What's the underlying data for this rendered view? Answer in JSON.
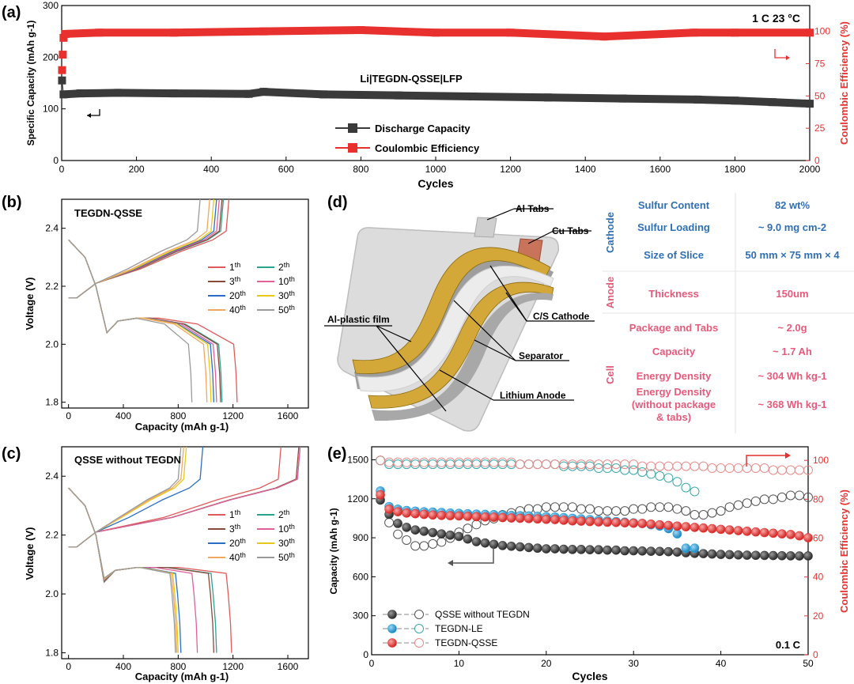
{
  "colors": {
    "red": "#e8312f",
    "black": "#3a3a3a",
    "blue": "#2aa3dd",
    "cathode_blue": "#2f6fb4",
    "anode_pink": "#e65a7a",
    "cell_pink": "#e65a7a",
    "gold": "#d4a838",
    "copper": "#c8735a"
  },
  "chart_data": [
    {
      "id": "a",
      "panel_label": "(a)",
      "type": "line",
      "title": "Li|TEGDN-QSSE|LFP",
      "conditions": "1 C   23 °C",
      "xlabel": "Cycles",
      "ylabel": "Specific Capacity (mAh g-1)",
      "ylabel_sup": "-1",
      "y2label": "Coulombic Efficiency (%)",
      "xlim": [
        0,
        2000
      ],
      "ylim": [
        0,
        300
      ],
      "y2lim": [
        0,
        120
      ],
      "xticks": [
        0,
        200,
        400,
        600,
        800,
        1000,
        1200,
        1400,
        1600,
        1800,
        2000
      ],
      "yticks": [
        0,
        100,
        200,
        300
      ],
      "y2ticks": [
        0,
        25,
        50,
        75,
        100
      ],
      "series": [
        {
          "name": "Discharge Capacity",
          "axis": "left",
          "color": "#3a3a3a",
          "x": [
            1,
            5,
            50,
            150,
            300,
            500,
            540,
            700,
            900,
            1100,
            1300,
            1500,
            1700,
            1800,
            1900,
            2000
          ],
          "y": [
            155,
            128,
            130,
            131,
            130,
            129,
            133,
            128,
            126,
            124,
            122,
            120,
            118,
            116,
            113,
            110
          ]
        },
        {
          "name": "Coulombic Efficiency",
          "axis": "right",
          "color": "#e8312f",
          "x": [
            1,
            3,
            5,
            10,
            100,
            300,
            540,
            800,
            1000,
            1200,
            1450,
            1690,
            1800,
            2000
          ],
          "y": [
            70,
            82,
            95,
            98,
            99,
            99,
            100,
            101,
            99,
            99,
            96,
            99,
            99,
            99
          ]
        }
      ]
    },
    {
      "id": "b",
      "panel_label": "(b)",
      "type": "line",
      "title": "TEGDN-QSSE",
      "xlabel": "Capacity (mAh g-1)",
      "xlabel_sup": "-1",
      "ylabel": "Voltage (V)",
      "xlim": [
        -50,
        1750
      ],
      "ylim": [
        1.78,
        2.5
      ],
      "xticks": [
        0,
        400,
        800,
        1200,
        1600
      ],
      "yticks": [
        1.8,
        2.0,
        2.2,
        2.4
      ],
      "series": [
        {
          "name": "1th",
          "color": "#e05a5a",
          "discharge_end": 1230,
          "charge_end": 1170,
          "plateau_end": 940
        },
        {
          "name": "2th",
          "color": "#2aa390",
          "discharge_end": 1120,
          "charge_end": 1130,
          "plateau_end": 850
        },
        {
          "name": "3th",
          "color": "#8a4a3a",
          "discharge_end": 1110,
          "charge_end": 1120,
          "plateau_end": 840
        },
        {
          "name": "10th",
          "color": "#e0609a",
          "discharge_end": 1080,
          "charge_end": 1100,
          "plateau_end": 820
        },
        {
          "name": "20th",
          "color": "#2a6fc4",
          "discharge_end": 1060,
          "charge_end": 1080,
          "plateau_end": 800
        },
        {
          "name": "30th",
          "color": "#e8c81a",
          "discharge_end": 1040,
          "charge_end": 1060,
          "plateau_end": 790
        },
        {
          "name": "40th",
          "color": "#f0a860",
          "discharge_end": 1010,
          "charge_end": 1030,
          "plateau_end": 770
        },
        {
          "name": "50th",
          "color": "#9a9a9a",
          "discharge_end": 900,
          "charge_end": 960,
          "plateau_end": 700
        }
      ]
    },
    {
      "id": "c",
      "panel_label": "(c)",
      "type": "line",
      "title": "QSSE without TEGDN",
      "xlabel": "Capacity (mAh g-1)",
      "xlabel_sup": "-1",
      "ylabel": "Voltage (V)",
      "xlim": [
        -50,
        1750
      ],
      "ylim": [
        1.78,
        2.5
      ],
      "xticks": [
        0,
        400,
        800,
        1200,
        1600
      ],
      "yticks": [
        1.8,
        2.0,
        2.2,
        2.4
      ],
      "series": [
        {
          "name": "1th",
          "color": "#e05a5a",
          "discharge_end": 1190,
          "charge_end": 1550,
          "plateau_end": 1150
        },
        {
          "name": "2th",
          "color": "#2aa390",
          "discharge_end": 1080,
          "charge_end": 1690,
          "plateau_end": 1040
        },
        {
          "name": "3th",
          "color": "#8a4a3a",
          "discharge_end": 1060,
          "charge_end": 1680,
          "plateau_end": 1020
        },
        {
          "name": "10th",
          "color": "#e0609a",
          "discharge_end": 940,
          "charge_end": 1690,
          "plateau_end": 900
        },
        {
          "name": "20th",
          "color": "#2a6fc4",
          "discharge_end": 820,
          "charge_end": 980,
          "plateau_end": 780
        },
        {
          "name": "30th",
          "color": "#e8c81a",
          "discharge_end": 800,
          "charge_end": 860,
          "plateau_end": 760
        },
        {
          "name": "40th",
          "color": "#f0a860",
          "discharge_end": 790,
          "charge_end": 840,
          "plateau_end": 750
        },
        {
          "name": "50th",
          "color": "#9a9a9a",
          "discharge_end": 780,
          "charge_end": 820,
          "plateau_end": 740
        }
      ]
    },
    {
      "id": "e",
      "panel_label": "(e)",
      "type": "scatter",
      "conditions": "0.1 C",
      "xlabel": "Cycles",
      "ylabel": "Capacity (mAh g-1)",
      "ylabel_sup": "-1",
      "y2label": "Coulombic Efficiency (%)",
      "xlim": [
        0,
        50
      ],
      "ylim": [
        0,
        1600
      ],
      "y2lim": [
        0,
        107
      ],
      "xticks": [
        0,
        10,
        20,
        30,
        40,
        50
      ],
      "yticks": [
        0,
        300,
        600,
        900,
        1200,
        1500
      ],
      "y2ticks": [
        0,
        20,
        40,
        60,
        80,
        100
      ],
      "series": [
        {
          "name": "QSSE without TEGDN",
          "color": "#3a3a3a",
          "capacity": [
            1190,
            1080,
            1010,
            980,
            960,
            950,
            940,
            930,
            920,
            910,
            890,
            870,
            860,
            850,
            840,
            835,
            830,
            825,
            820,
            815,
            815,
            812,
            810,
            810,
            808,
            808,
            805,
            805,
            800,
            800,
            798,
            796,
            795,
            793,
            790,
            785,
            780,
            778,
            775,
            772,
            770,
            768,
            766,
            765,
            764,
            763,
            762,
            761,
            760,
            760
          ],
          "ce": [
            100,
            68,
            62,
            59,
            56,
            56,
            57,
            58,
            60,
            63,
            65,
            67,
            69,
            70,
            72,
            73,
            74,
            75,
            75,
            76,
            76,
            76,
            76,
            75,
            75,
            74,
            74,
            74,
            74,
            75,
            75,
            76,
            76,
            76,
            75,
            74,
            72,
            72,
            73,
            74,
            76,
            77,
            78,
            79,
            80,
            80,
            81,
            82,
            82,
            81
          ]
        },
        {
          "name": "TEGDN-LE",
          "color": "#2aa3dd",
          "capacity": [
            1260,
            1140,
            1120,
            1110,
            1105,
            1100,
            1098,
            1095,
            1090,
            1088,
            1085,
            1082,
            1080,
            1078,
            1075,
            1072,
            1070,
            1068,
            1065,
            1062,
            1060,
            1055,
            1050,
            1045,
            1040,
            1035,
            1030,
            1025,
            1020,
            1015,
            1010,
            1000,
            990,
            970,
            930,
            820,
            820
          ],
          "ce": [
            100,
            98,
            98,
            98,
            98,
            98,
            98,
            98,
            98,
            98,
            98,
            98,
            98,
            98,
            98,
            98,
            98,
            98,
            98,
            98,
            98,
            97,
            97,
            97,
            97,
            96,
            96,
            96,
            95,
            95,
            94,
            93,
            92,
            91,
            89,
            86,
            84
          ]
        },
        {
          "name": "TEGDN-QSSE",
          "color": "#e8312f",
          "capacity": [
            1230,
            1120,
            1100,
            1090,
            1085,
            1080,
            1075,
            1072,
            1070,
            1068,
            1065,
            1062,
            1060,
            1058,
            1055,
            1052,
            1050,
            1048,
            1045,
            1042,
            1040,
            1035,
            1030,
            1028,
            1025,
            1022,
            1020,
            1018,
            1015,
            1012,
            1010,
            1005,
            1000,
            995,
            990,
            985,
            980,
            975,
            970,
            965,
            960,
            955,
            950,
            945,
            940,
            935,
            930,
            925,
            915,
            900
          ],
          "ce": [
            100,
            99,
            99,
            99,
            99,
            99,
            99,
            99,
            99,
            99,
            99,
            99,
            99,
            99,
            99,
            99,
            98,
            98,
            98,
            98,
            98,
            98,
            98,
            98,
            98,
            98,
            98,
            98,
            98,
            98,
            97,
            97,
            97,
            97,
            97,
            97,
            97,
            97,
            96,
            96,
            96,
            96,
            96,
            96,
            96,
            95,
            95,
            95,
            95,
            95
          ]
        }
      ]
    }
  ],
  "panel_d": {
    "panel_label": "(d)",
    "diagram_labels": {
      "al_tabs": "Al Tabs",
      "cu_tabs": "Cu Tabs",
      "cs_cathode": "C/S Cathode",
      "al_plastic": "Al-plastic film",
      "separator": "Separator",
      "lithium_anode": "Lithium Anode"
    },
    "table": [
      {
        "group": "Cathode",
        "label": "Sulfur Content",
        "value": "82 wt%"
      },
      {
        "group": "Cathode",
        "label": "Sulfur Loading",
        "value": "~ 9.0 mg cm-2"
      },
      {
        "group": "Cathode",
        "label": "Size of Slice",
        "value": "50 mm × 75 mm × 4"
      },
      {
        "group": "Anode",
        "label": "Thickness",
        "value": "150um"
      },
      {
        "group": "Cell",
        "label": "Package and Tabs",
        "value": "~ 2.0g"
      },
      {
        "group": "Cell",
        "label": "Capacity",
        "value": "~ 1.7 Ah"
      },
      {
        "group": "Cell",
        "label": "Energy Density",
        "value": "~ 304 Wh kg-1"
      },
      {
        "group": "Cell",
        "label": "Energy Density (without package & tabs)",
        "value": "~ 368 Wh kg-1"
      }
    ],
    "groups": [
      "Cathode",
      "Anode",
      "Cell"
    ]
  }
}
